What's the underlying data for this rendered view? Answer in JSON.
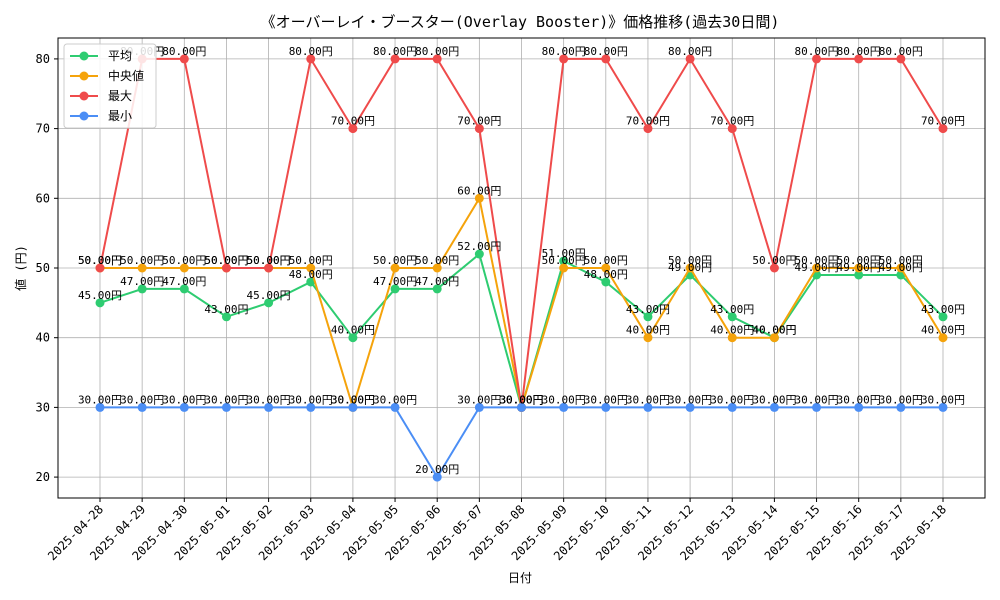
{
  "chart_data": {
    "type": "line",
    "title": "《オーバーレイ・ブースター(Overlay Booster)》価格推移(過去30日間)",
    "xlabel": "日付",
    "ylabel": "値 (円)",
    "ylim": [
      17,
      83
    ],
    "yticks": [
      20,
      30,
      40,
      50,
      60,
      70,
      80
    ],
    "grid": true,
    "legend_position": "top-left",
    "value_suffix": "円",
    "categories": [
      "2025-04-28",
      "2025-04-29",
      "2025-04-30",
      "2025-05-01",
      "2025-05-02",
      "2025-05-03",
      "2025-05-04",
      "2025-05-05",
      "2025-05-06",
      "2025-05-07",
      "2025-05-08",
      "2025-05-09",
      "2025-05-10",
      "2025-05-11",
      "2025-05-12",
      "2025-05-13",
      "2025-05-14",
      "2025-05-15",
      "2025-05-16",
      "2025-05-17",
      "2025-05-18"
    ],
    "series": [
      {
        "name": "平均",
        "color": "#2ecc71",
        "values": [
          45,
          47,
          47,
          43,
          45,
          48,
          40,
          47,
          47,
          52,
          30,
          51,
          48,
          43,
          49,
          43,
          40,
          49,
          49,
          49,
          43
        ]
      },
      {
        "name": "中央値",
        "color": "#f5a30b",
        "values": [
          50,
          50,
          50,
          50,
          50,
          50,
          30,
          50,
          50,
          60,
          30,
          50,
          50,
          40,
          50,
          40,
          40,
          50,
          50,
          50,
          40
        ]
      },
      {
        "name": "最大",
        "color": "#ef4b4b",
        "values": [
          50,
          80,
          80,
          50,
          50,
          80,
          70,
          80,
          80,
          70,
          30,
          80,
          80,
          70,
          80,
          70,
          50,
          80,
          80,
          80,
          70
        ]
      },
      {
        "name": "最小",
        "color": "#4b8ef5",
        "values": [
          30,
          30,
          30,
          30,
          30,
          30,
          30,
          30,
          20,
          30,
          30,
          30,
          30,
          30,
          30,
          30,
          30,
          30,
          30,
          30,
          30
        ]
      }
    ]
  }
}
